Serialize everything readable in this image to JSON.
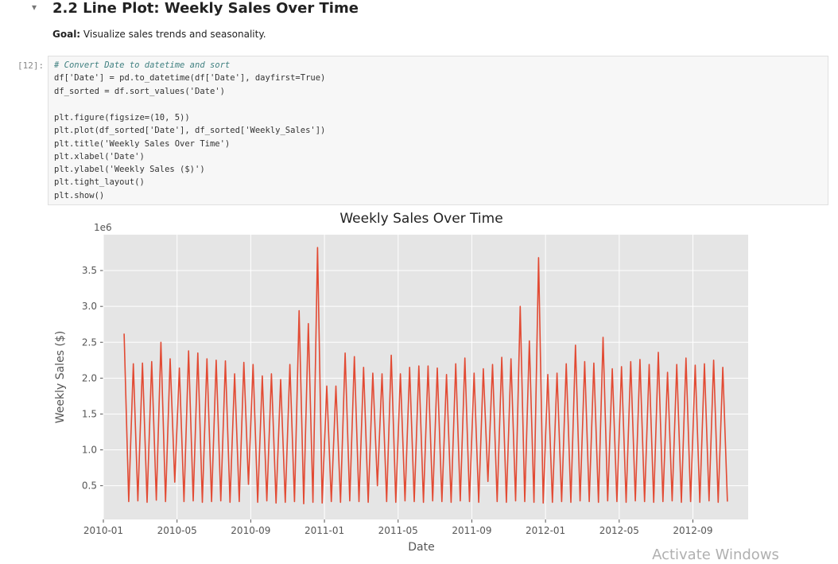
{
  "header": {
    "title": "2.2 Line Plot: Weekly Sales Over Time"
  },
  "goal": {
    "label": "Goal:",
    "text": " Visualize sales trends and seasonality."
  },
  "cell": {
    "prompt": "[12]:",
    "code": {
      "blocks": [
        [
          "# Convert Date to datetime and sort",
          "df['Date'] = pd.to_datetime(df['Date'], dayfirst=True)",
          "df_sorted = df.sort_values('Date')"
        ],
        [
          "plt.figure(figsize=(10, 5))",
          "plt.plot(df_sorted['Date'], df_sorted['Weekly_Sales'])",
          "plt.title('Weekly Sales Over Time')",
          "plt.xlabel('Date')",
          "plt.ylabel('Weekly Sales ($)')",
          "plt.tight_layout()",
          "plt.show()"
        ]
      ]
    }
  },
  "watermark": "Activate Windows",
  "chart_data": {
    "type": "line",
    "title": "Weekly Sales Over Time",
    "x_label": "Date",
    "y_label": "Weekly Sales ($)",
    "y_offset_label": "1e6",
    "grid": true,
    "xlim": [
      "2010-01",
      "2012-12"
    ],
    "xticks": [
      "2010-01",
      "2010-05",
      "2010-09",
      "2011-01",
      "2011-05",
      "2011-09",
      "2012-01",
      "2012-05",
      "2012-09"
    ],
    "ylim": [
      0.03,
      4.0
    ],
    "yticks": [
      0.5,
      {
        "value": 1,
        "label": "1.0"
      },
      1.5,
      {
        "value": 2,
        "label": "2.0"
      },
      2.5,
      {
        "value": 3,
        "label": "3.0"
      },
      3.5
    ],
    "x": [
      "2010-02",
      "2010-02",
      "2010-02",
      "2010-02",
      "2010-03",
      "2010-03",
      "2010-03",
      "2010-03",
      "2010-04",
      "2010-04",
      "2010-04",
      "2010-04",
      "2010-05",
      "2010-05",
      "2010-05",
      "2010-05",
      "2010-06",
      "2010-06",
      "2010-06",
      "2010-06",
      "2010-07",
      "2010-07",
      "2010-07",
      "2010-07",
      "2010-08",
      "2010-08",
      "2010-08",
      "2010-08",
      "2010-09",
      "2010-09",
      "2010-09",
      "2010-09",
      "2010-10",
      "2010-10",
      "2010-10",
      "2010-10",
      "2010-11",
      "2010-11",
      "2010-11",
      "2010-11",
      "2010-12",
      "2010-12",
      "2010-12",
      "2010-12",
      "2011-01",
      "2011-01",
      "2011-01",
      "2011-01",
      "2011-02",
      "2011-02",
      "2011-02",
      "2011-02",
      "2011-03",
      "2011-03",
      "2011-03",
      "2011-03",
      "2011-04",
      "2011-04",
      "2011-04",
      "2011-04",
      "2011-05",
      "2011-05",
      "2011-05",
      "2011-05",
      "2011-06",
      "2011-06",
      "2011-06",
      "2011-06",
      "2011-07",
      "2011-07",
      "2011-07",
      "2011-07",
      "2011-08",
      "2011-08",
      "2011-08",
      "2011-08",
      "2011-09",
      "2011-09",
      "2011-09",
      "2011-09",
      "2011-10",
      "2011-10",
      "2011-10",
      "2011-10",
      "2011-11",
      "2011-11",
      "2011-11",
      "2011-11",
      "2011-12",
      "2011-12",
      "2011-12",
      "2011-12",
      "2012-01",
      "2012-01",
      "2012-01",
      "2012-01",
      "2012-02",
      "2012-02",
      "2012-02",
      "2012-02",
      "2012-03",
      "2012-03",
      "2012-03",
      "2012-03",
      "2012-04",
      "2012-04",
      "2012-04",
      "2012-04",
      "2012-05",
      "2012-05",
      "2012-05",
      "2012-05",
      "2012-06",
      "2012-06",
      "2012-06",
      "2012-06",
      "2012-07",
      "2012-07",
      "2012-07",
      "2012-07",
      "2012-08",
      "2012-08",
      "2012-08",
      "2012-08",
      "2012-09",
      "2012-09",
      "2012-09",
      "2012-09",
      "2012-10",
      "2012-10",
      "2012-10",
      "2012-10"
    ],
    "series": [
      {
        "name": "Weekly_Sales",
        "color": "#E24A33",
        "values": [
          2.62,
          0.28,
          2.2,
          0.29,
          2.21,
          0.27,
          2.23,
          0.3,
          2.5,
          0.28,
          2.27,
          0.55,
          2.14,
          0.28,
          2.38,
          0.29,
          2.35,
          0.27,
          2.27,
          0.28,
          2.25,
          0.29,
          2.24,
          0.27,
          2.06,
          0.28,
          2.22,
          0.52,
          2.19,
          0.27,
          2.03,
          0.29,
          2.06,
          0.26,
          1.98,
          0.27,
          2.19,
          0.28,
          2.94,
          0.25,
          2.76,
          0.27,
          3.82,
          0.26,
          1.89,
          0.28,
          1.89,
          0.27,
          2.35,
          0.29,
          2.3,
          0.28,
          2.15,
          0.27,
          2.07,
          0.5,
          2.06,
          0.28,
          2.32,
          0.27,
          2.06,
          0.29,
          2.15,
          0.28,
          2.17,
          0.27,
          2.17,
          0.29,
          2.14,
          0.28,
          2.05,
          0.27,
          2.2,
          0.29,
          2.28,
          0.28,
          2.07,
          0.27,
          2.13,
          0.56,
          2.19,
          0.28,
          2.29,
          0.27,
          2.27,
          0.29,
          3.0,
          0.28,
          2.52,
          0.27,
          3.68,
          0.26,
          2.05,
          0.27,
          2.07,
          0.28,
          2.2,
          0.27,
          2.46,
          0.29,
          2.23,
          0.28,
          2.21,
          0.27,
          2.57,
          0.29,
          2.13,
          0.28,
          2.16,
          0.27,
          2.23,
          0.29,
          2.26,
          0.28,
          2.19,
          0.27,
          2.36,
          0.28,
          2.08,
          0.29,
          2.19,
          0.27,
          2.28,
          0.28,
          2.18,
          0.27,
          2.2,
          0.29,
          2.25,
          0.27,
          2.15,
          0.28
        ]
      }
    ]
  }
}
